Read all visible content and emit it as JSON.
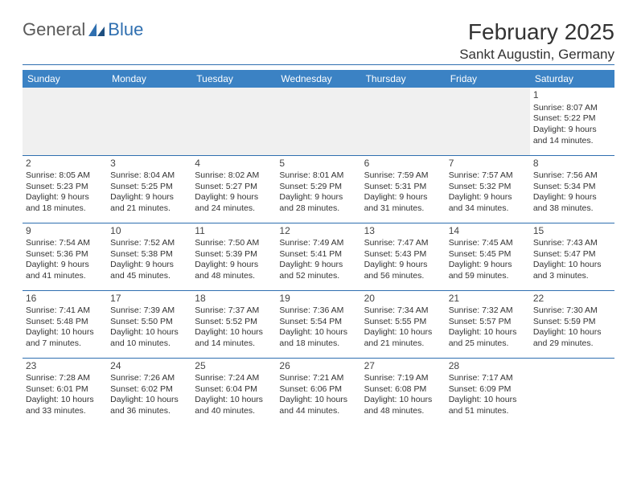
{
  "logo": {
    "general": "General",
    "blue": "Blue"
  },
  "title": "February 2025",
  "location": "Sankt Augustin, Germany",
  "header_bg": "#3b82c4",
  "border_color": "#2f6fb0",
  "days": [
    "Sunday",
    "Monday",
    "Tuesday",
    "Wednesday",
    "Thursday",
    "Friday",
    "Saturday"
  ],
  "weeks": [
    [
      null,
      null,
      null,
      null,
      null,
      null,
      {
        "n": "1",
        "sr": "Sunrise: 8:07 AM",
        "ss": "Sunset: 5:22 PM",
        "d1": "Daylight: 9 hours",
        "d2": "and 14 minutes."
      }
    ],
    [
      {
        "n": "2",
        "sr": "Sunrise: 8:05 AM",
        "ss": "Sunset: 5:23 PM",
        "d1": "Daylight: 9 hours",
        "d2": "and 18 minutes."
      },
      {
        "n": "3",
        "sr": "Sunrise: 8:04 AM",
        "ss": "Sunset: 5:25 PM",
        "d1": "Daylight: 9 hours",
        "d2": "and 21 minutes."
      },
      {
        "n": "4",
        "sr": "Sunrise: 8:02 AM",
        "ss": "Sunset: 5:27 PM",
        "d1": "Daylight: 9 hours",
        "d2": "and 24 minutes."
      },
      {
        "n": "5",
        "sr": "Sunrise: 8:01 AM",
        "ss": "Sunset: 5:29 PM",
        "d1": "Daylight: 9 hours",
        "d2": "and 28 minutes."
      },
      {
        "n": "6",
        "sr": "Sunrise: 7:59 AM",
        "ss": "Sunset: 5:31 PM",
        "d1": "Daylight: 9 hours",
        "d2": "and 31 minutes."
      },
      {
        "n": "7",
        "sr": "Sunrise: 7:57 AM",
        "ss": "Sunset: 5:32 PM",
        "d1": "Daylight: 9 hours",
        "d2": "and 34 minutes."
      },
      {
        "n": "8",
        "sr": "Sunrise: 7:56 AM",
        "ss": "Sunset: 5:34 PM",
        "d1": "Daylight: 9 hours",
        "d2": "and 38 minutes."
      }
    ],
    [
      {
        "n": "9",
        "sr": "Sunrise: 7:54 AM",
        "ss": "Sunset: 5:36 PM",
        "d1": "Daylight: 9 hours",
        "d2": "and 41 minutes."
      },
      {
        "n": "10",
        "sr": "Sunrise: 7:52 AM",
        "ss": "Sunset: 5:38 PM",
        "d1": "Daylight: 9 hours",
        "d2": "and 45 minutes."
      },
      {
        "n": "11",
        "sr": "Sunrise: 7:50 AM",
        "ss": "Sunset: 5:39 PM",
        "d1": "Daylight: 9 hours",
        "d2": "and 48 minutes."
      },
      {
        "n": "12",
        "sr": "Sunrise: 7:49 AM",
        "ss": "Sunset: 5:41 PM",
        "d1": "Daylight: 9 hours",
        "d2": "and 52 minutes."
      },
      {
        "n": "13",
        "sr": "Sunrise: 7:47 AM",
        "ss": "Sunset: 5:43 PM",
        "d1": "Daylight: 9 hours",
        "d2": "and 56 minutes."
      },
      {
        "n": "14",
        "sr": "Sunrise: 7:45 AM",
        "ss": "Sunset: 5:45 PM",
        "d1": "Daylight: 9 hours",
        "d2": "and 59 minutes."
      },
      {
        "n": "15",
        "sr": "Sunrise: 7:43 AM",
        "ss": "Sunset: 5:47 PM",
        "d1": "Daylight: 10 hours",
        "d2": "and 3 minutes."
      }
    ],
    [
      {
        "n": "16",
        "sr": "Sunrise: 7:41 AM",
        "ss": "Sunset: 5:48 PM",
        "d1": "Daylight: 10 hours",
        "d2": "and 7 minutes."
      },
      {
        "n": "17",
        "sr": "Sunrise: 7:39 AM",
        "ss": "Sunset: 5:50 PM",
        "d1": "Daylight: 10 hours",
        "d2": "and 10 minutes."
      },
      {
        "n": "18",
        "sr": "Sunrise: 7:37 AM",
        "ss": "Sunset: 5:52 PM",
        "d1": "Daylight: 10 hours",
        "d2": "and 14 minutes."
      },
      {
        "n": "19",
        "sr": "Sunrise: 7:36 AM",
        "ss": "Sunset: 5:54 PM",
        "d1": "Daylight: 10 hours",
        "d2": "and 18 minutes."
      },
      {
        "n": "20",
        "sr": "Sunrise: 7:34 AM",
        "ss": "Sunset: 5:55 PM",
        "d1": "Daylight: 10 hours",
        "d2": "and 21 minutes."
      },
      {
        "n": "21",
        "sr": "Sunrise: 7:32 AM",
        "ss": "Sunset: 5:57 PM",
        "d1": "Daylight: 10 hours",
        "d2": "and 25 minutes."
      },
      {
        "n": "22",
        "sr": "Sunrise: 7:30 AM",
        "ss": "Sunset: 5:59 PM",
        "d1": "Daylight: 10 hours",
        "d2": "and 29 minutes."
      }
    ],
    [
      {
        "n": "23",
        "sr": "Sunrise: 7:28 AM",
        "ss": "Sunset: 6:01 PM",
        "d1": "Daylight: 10 hours",
        "d2": "and 33 minutes."
      },
      {
        "n": "24",
        "sr": "Sunrise: 7:26 AM",
        "ss": "Sunset: 6:02 PM",
        "d1": "Daylight: 10 hours",
        "d2": "and 36 minutes."
      },
      {
        "n": "25",
        "sr": "Sunrise: 7:24 AM",
        "ss": "Sunset: 6:04 PM",
        "d1": "Daylight: 10 hours",
        "d2": "and 40 minutes."
      },
      {
        "n": "26",
        "sr": "Sunrise: 7:21 AM",
        "ss": "Sunset: 6:06 PM",
        "d1": "Daylight: 10 hours",
        "d2": "and 44 minutes."
      },
      {
        "n": "27",
        "sr": "Sunrise: 7:19 AM",
        "ss": "Sunset: 6:08 PM",
        "d1": "Daylight: 10 hours",
        "d2": "and 48 minutes."
      },
      {
        "n": "28",
        "sr": "Sunrise: 7:17 AM",
        "ss": "Sunset: 6:09 PM",
        "d1": "Daylight: 10 hours",
        "d2": "and 51 minutes."
      },
      null
    ]
  ]
}
